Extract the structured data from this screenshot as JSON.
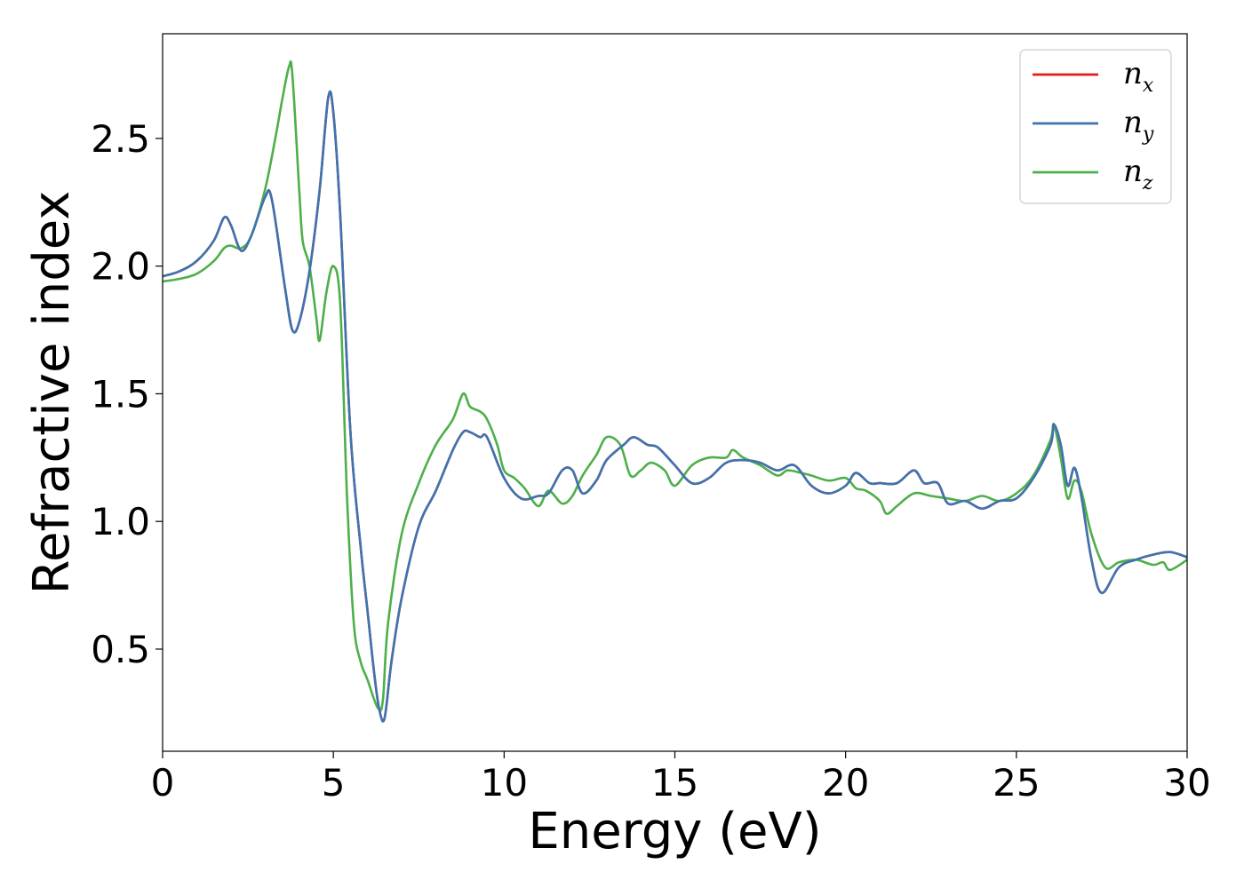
{
  "chart_data": {
    "type": "line",
    "xlabel": "Energy (eV)",
    "ylabel": "Refractive index",
    "xlim": [
      0,
      30
    ],
    "ylim": [
      0.1,
      2.91
    ],
    "xticks": [
      0,
      5,
      10,
      15,
      20,
      25,
      30
    ],
    "xtick_labels": [
      "0",
      "5",
      "10",
      "15",
      "20",
      "25",
      "30"
    ],
    "yticks": [
      0.5,
      1.0,
      1.5,
      2.0,
      2.5
    ],
    "ytick_labels": [
      "0.5",
      "1.0",
      "1.5",
      "2.0",
      "2.5"
    ],
    "grid": false,
    "legend_position": "top-right",
    "series": [
      {
        "name": "n_x",
        "legend_main": "n",
        "legend_sub": "x",
        "color": "#e41a1c",
        "x": [
          0,
          0.5,
          1.0,
          1.5,
          1.8,
          2.0,
          2.3,
          2.6,
          3.0,
          3.2,
          3.6,
          3.8,
          4.0,
          4.3,
          4.6,
          4.85,
          5.0,
          5.2,
          5.5,
          5.8,
          6.0,
          6.2,
          6.35,
          6.5,
          6.7,
          7.0,
          7.5,
          8.0,
          8.5,
          8.8,
          9.0,
          9.3,
          9.5,
          10.0,
          10.5,
          11.0,
          11.3,
          11.7,
          12.0,
          12.3,
          12.7,
          13.0,
          13.5,
          13.8,
          14.2,
          14.5,
          15.0,
          15.5,
          16.0,
          16.5,
          17.0,
          17.5,
          18.0,
          18.5,
          19.0,
          19.5,
          20.0,
          20.3,
          20.7,
          21.0,
          21.5,
          22.0,
          22.3,
          22.7,
          23.0,
          23.5,
          24.0,
          24.5,
          25.0,
          25.5,
          26.0,
          26.1,
          26.3,
          26.5,
          26.7,
          26.9,
          27.2,
          27.5,
          28.0,
          28.5,
          29.0,
          29.5,
          30.0
        ],
        "y": [
          1.96,
          1.98,
          2.02,
          2.1,
          2.19,
          2.16,
          2.06,
          2.12,
          2.27,
          2.26,
          1.9,
          1.75,
          1.78,
          1.98,
          2.3,
          2.66,
          2.6,
          2.2,
          1.35,
          0.9,
          0.65,
          0.4,
          0.26,
          0.23,
          0.45,
          0.7,
          0.98,
          1.12,
          1.28,
          1.35,
          1.35,
          1.33,
          1.33,
          1.17,
          1.09,
          1.1,
          1.11,
          1.2,
          1.2,
          1.11,
          1.16,
          1.24,
          1.3,
          1.33,
          1.3,
          1.29,
          1.22,
          1.15,
          1.17,
          1.23,
          1.24,
          1.23,
          1.2,
          1.22,
          1.14,
          1.11,
          1.14,
          1.19,
          1.15,
          1.15,
          1.15,
          1.2,
          1.15,
          1.15,
          1.07,
          1.08,
          1.05,
          1.08,
          1.09,
          1.17,
          1.3,
          1.38,
          1.3,
          1.14,
          1.21,
          1.1,
          0.85,
          0.72,
          0.82,
          0.85,
          0.87,
          0.88,
          0.86
        ]
      },
      {
        "name": "n_y",
        "legend_main": "n",
        "legend_sub": "y",
        "color": "#3d74b0",
        "x": [
          0,
          0.5,
          1.0,
          1.5,
          1.8,
          2.0,
          2.3,
          2.6,
          3.0,
          3.2,
          3.6,
          3.8,
          4.0,
          4.3,
          4.6,
          4.85,
          5.0,
          5.2,
          5.5,
          5.8,
          6.0,
          6.2,
          6.35,
          6.5,
          6.7,
          7.0,
          7.5,
          8.0,
          8.5,
          8.8,
          9.0,
          9.3,
          9.5,
          10.0,
          10.5,
          11.0,
          11.3,
          11.7,
          12.0,
          12.3,
          12.7,
          13.0,
          13.5,
          13.8,
          14.2,
          14.5,
          15.0,
          15.5,
          16.0,
          16.5,
          17.0,
          17.5,
          18.0,
          18.5,
          19.0,
          19.5,
          20.0,
          20.3,
          20.7,
          21.0,
          21.5,
          22.0,
          22.3,
          22.7,
          23.0,
          23.5,
          24.0,
          24.5,
          25.0,
          25.5,
          26.0,
          26.1,
          26.3,
          26.5,
          26.7,
          26.9,
          27.2,
          27.5,
          28.0,
          28.5,
          29.0,
          29.5,
          30.0
        ],
        "y": [
          1.96,
          1.98,
          2.02,
          2.1,
          2.19,
          2.16,
          2.06,
          2.12,
          2.27,
          2.26,
          1.9,
          1.75,
          1.78,
          1.98,
          2.3,
          2.66,
          2.6,
          2.2,
          1.35,
          0.9,
          0.65,
          0.4,
          0.26,
          0.23,
          0.45,
          0.7,
          0.98,
          1.12,
          1.28,
          1.35,
          1.35,
          1.33,
          1.33,
          1.17,
          1.09,
          1.1,
          1.11,
          1.2,
          1.2,
          1.11,
          1.16,
          1.24,
          1.3,
          1.33,
          1.3,
          1.29,
          1.22,
          1.15,
          1.17,
          1.23,
          1.24,
          1.23,
          1.2,
          1.22,
          1.14,
          1.11,
          1.14,
          1.19,
          1.15,
          1.15,
          1.15,
          1.2,
          1.15,
          1.15,
          1.07,
          1.08,
          1.05,
          1.08,
          1.09,
          1.17,
          1.3,
          1.38,
          1.3,
          1.14,
          1.21,
          1.1,
          0.85,
          0.72,
          0.82,
          0.85,
          0.87,
          0.88,
          0.86
        ]
      },
      {
        "name": "n_z",
        "legend_main": "n",
        "legend_sub": "z",
        "color": "#4daf4a",
        "x": [
          0,
          0.5,
          1.0,
          1.5,
          1.8,
          2.0,
          2.3,
          2.6,
          3.0,
          3.3,
          3.5,
          3.7,
          3.8,
          4.0,
          4.1,
          4.3,
          4.5,
          4.6,
          4.8,
          5.0,
          5.2,
          5.4,
          5.6,
          5.8,
          6.0,
          6.3,
          6.45,
          6.6,
          7.0,
          7.5,
          8.0,
          8.5,
          8.8,
          9.0,
          9.3,
          9.5,
          9.8,
          10.0,
          10.3,
          10.6,
          11.0,
          11.3,
          11.7,
          12.0,
          12.3,
          12.7,
          13.0,
          13.4,
          13.7,
          14.0,
          14.3,
          14.7,
          15.0,
          15.5,
          16.0,
          16.5,
          16.7,
          17.0,
          17.5,
          18.0,
          18.3,
          18.7,
          19.0,
          19.5,
          20.0,
          20.3,
          20.6,
          21.0,
          21.2,
          21.5,
          22.0,
          22.5,
          23.0,
          23.5,
          24.0,
          24.5,
          25.0,
          25.5,
          26.0,
          26.1,
          26.3,
          26.5,
          26.7,
          26.9,
          27.2,
          27.6,
          28.0,
          28.5,
          29.0,
          29.3,
          29.5,
          30.0
        ],
        "y": [
          1.94,
          1.95,
          1.97,
          2.02,
          2.07,
          2.08,
          2.07,
          2.12,
          2.3,
          2.5,
          2.65,
          2.78,
          2.75,
          2.3,
          2.1,
          2.0,
          1.8,
          1.71,
          1.9,
          2.0,
          1.85,
          1.1,
          0.6,
          0.45,
          0.38,
          0.27,
          0.3,
          0.6,
          0.95,
          1.15,
          1.3,
          1.4,
          1.5,
          1.45,
          1.43,
          1.4,
          1.3,
          1.2,
          1.17,
          1.13,
          1.06,
          1.12,
          1.07,
          1.1,
          1.18,
          1.26,
          1.33,
          1.3,
          1.18,
          1.2,
          1.23,
          1.2,
          1.14,
          1.22,
          1.25,
          1.25,
          1.28,
          1.25,
          1.22,
          1.18,
          1.2,
          1.19,
          1.18,
          1.16,
          1.17,
          1.13,
          1.12,
          1.08,
          1.03,
          1.06,
          1.11,
          1.1,
          1.09,
          1.08,
          1.1,
          1.08,
          1.11,
          1.18,
          1.32,
          1.38,
          1.25,
          1.09,
          1.16,
          1.12,
          0.95,
          0.82,
          0.84,
          0.85,
          0.83,
          0.84,
          0.81,
          0.85
        ]
      }
    ]
  }
}
